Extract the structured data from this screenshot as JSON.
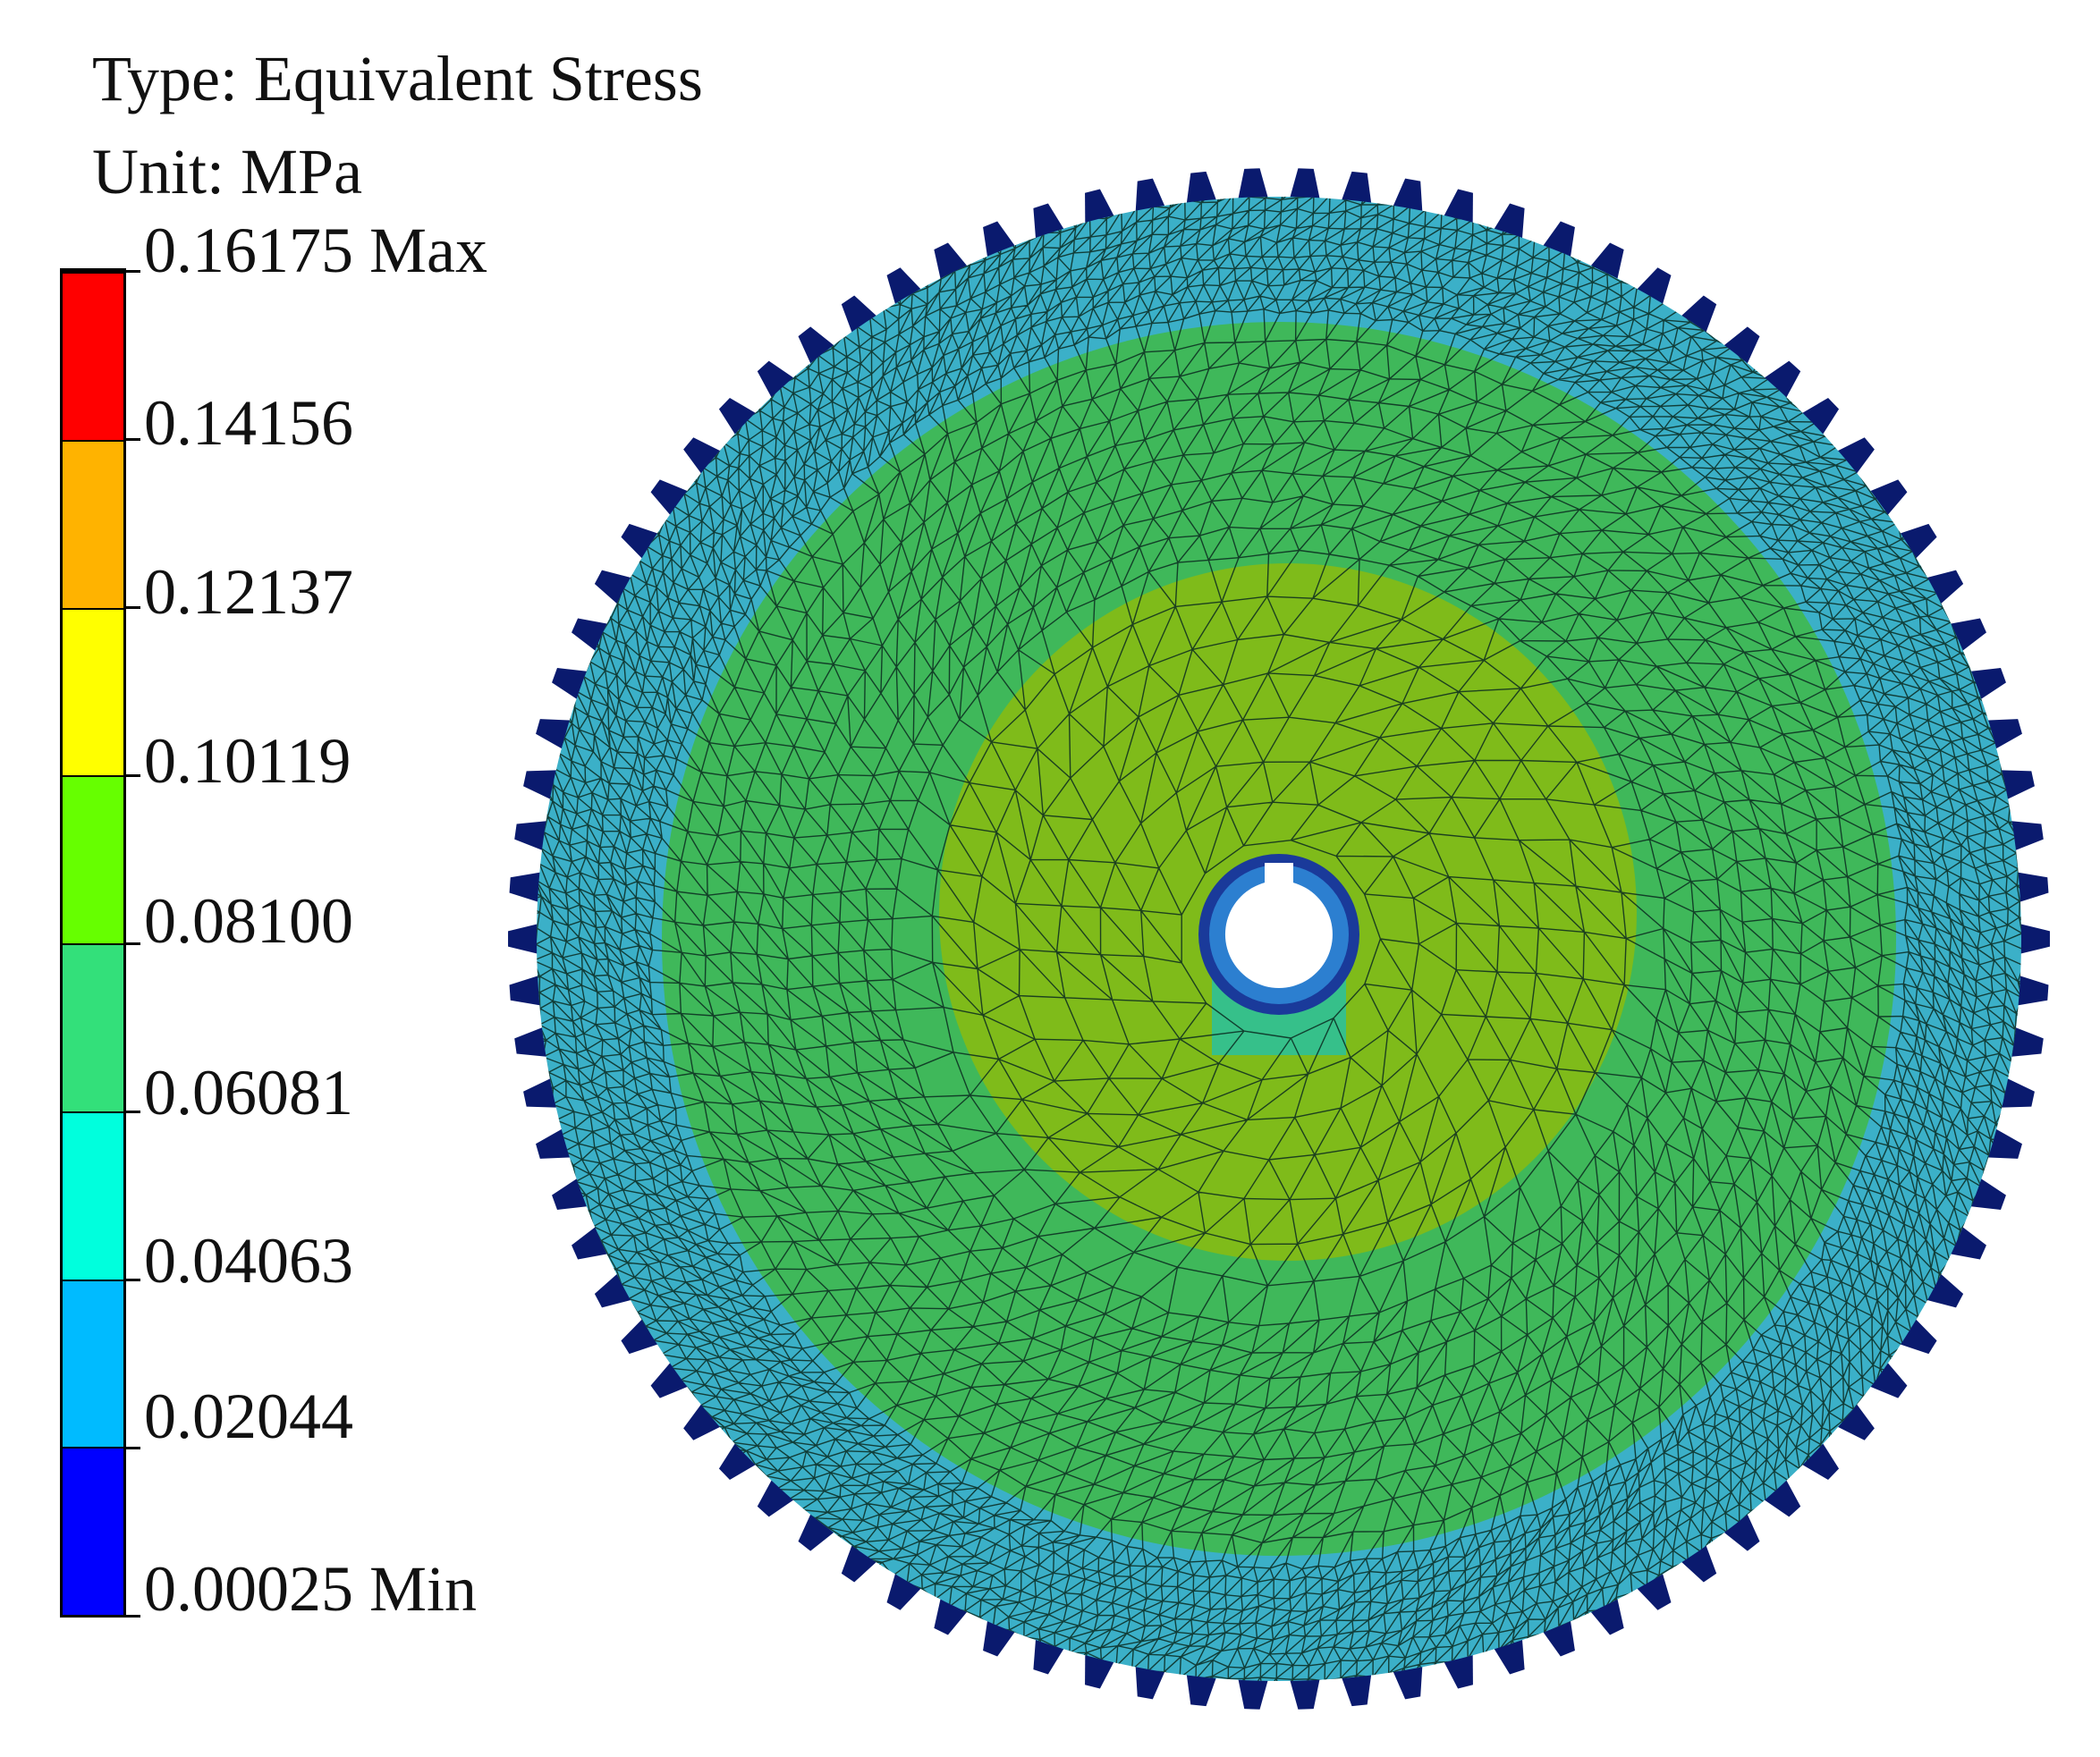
{
  "legend": {
    "type_label": "Type: Equivalent Stress",
    "unit_label": "Unit: MPa",
    "levels": [
      "0.16175 Max",
      "0.14156",
      "0.12137",
      "0.10119",
      "0.08100",
      "0.06081",
      "0.04063",
      "0.02044",
      "0.00025 Min"
    ],
    "band_colors": [
      "#ff0000",
      "#ffb300",
      "#ffff00",
      "#66ff00",
      "#33e07a",
      "#00ffdd",
      "#00bbff",
      "#0000ff"
    ],
    "max_cap_color": "#000000"
  },
  "model": {
    "description_icon": "gear-mesh-icon",
    "zone_colors": {
      "tooth_tips": "#0a1a6e",
      "outer_ring": "#3bb0c8",
      "middle_ring": "#3fb85a",
      "inner_core": "#7fbb1a",
      "keyway_zone": "#36c08a",
      "bore": "#ffffff",
      "mesh_lines": "#0b2a20"
    },
    "teeth_count": 90
  }
}
